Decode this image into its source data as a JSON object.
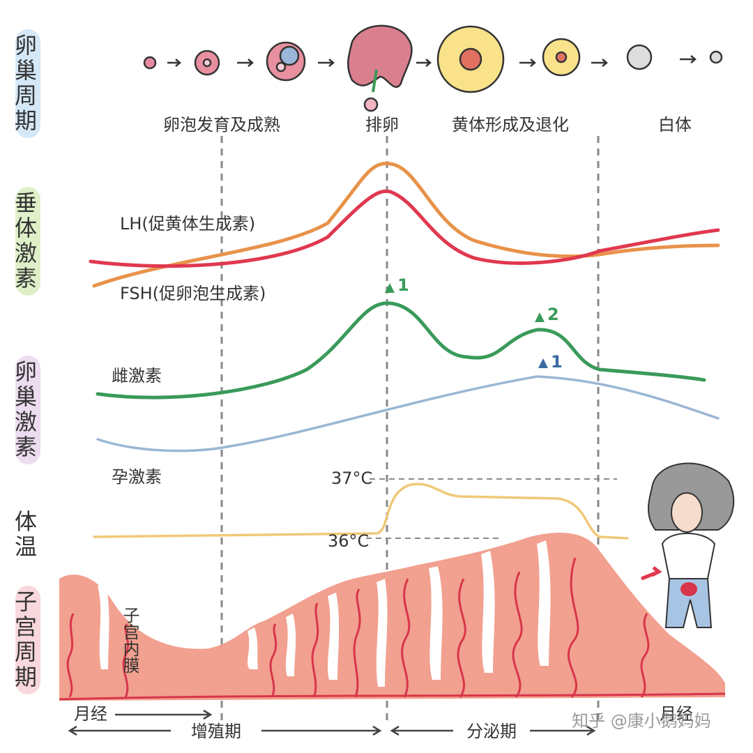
{
  "sidebar": [
    "卵巢周期",
    "垂体激素",
    "卵巢激素",
    "体温",
    "子宫周期"
  ],
  "ovary_phases": [
    "卵泡发育及成熟",
    "排卵",
    "黄体形成及退化",
    "白体"
  ],
  "hormones": {
    "lh": "LH(促黄体生成素)",
    "fsh": "FSH(促卵泡生成素)",
    "estrogen": "雌激素",
    "progesterone": "孕激素",
    "peaks": [
      "1",
      "2",
      "1"
    ]
  },
  "temperature": {
    "high": "37°C",
    "low": "36°C"
  },
  "uterus": {
    "label": "子宫内膜",
    "menses_start": "月经",
    "menses_end": "月经",
    "proliferative": "增殖期",
    "secretory": "分泌期"
  },
  "watermark": "知乎 @康小鹅妈妈"
}
